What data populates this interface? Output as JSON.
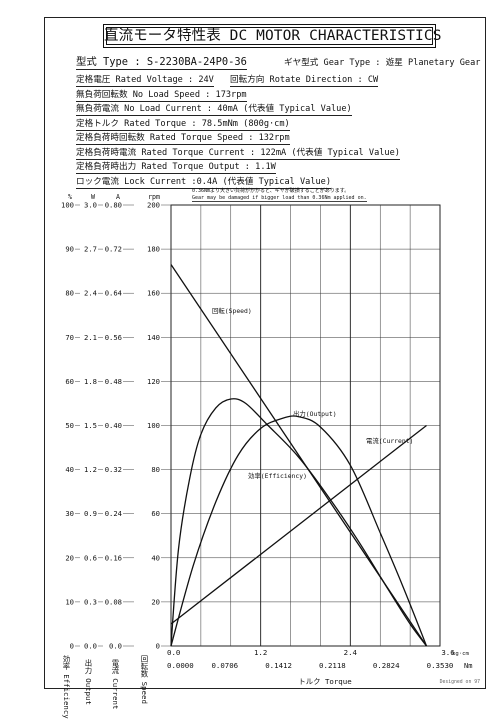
{
  "title": "直流モータ特性表 DC MOTOR CHARACTERISTICS",
  "specs": {
    "model": "型式 Type : S-2230BA-24P0-36",
    "gear": "ギヤ型式 Gear Type : 遊星 Planetary Gear",
    "rated_voltage": "定格電圧 Rated Voltage : 24V",
    "rotate_direction": "回転方向 Rotate Direction : CW",
    "no_load_speed": "無負荷回転数 No Load Speed : 173rpm",
    "no_load_current": "無負荷電流 No Load Current : 40mA (代表値 Typical Value)",
    "rated_torque": "定格トルク Rated Torque : 78.5mNm (800g·cm)",
    "rated_torque_speed": "定格負荷時回転数 Rated Torque Speed : 132rpm",
    "rated_torque_current": "定格負荷時電流 Rated Torque Current : 122mA (代表値 Typical Value)",
    "rated_torque_output": "定格負荷時出力 Rated Torque Output : 1.1W",
    "lock_current": "ロック電流 Lock Current :0.4A (代表値 Typical Value)"
  },
  "warning": {
    "jp": "0.36Nmより大きい負荷がかかると、ギヤが破損することがあります。",
    "en": "Gear may be damaged if bigger load than 0.36Nm applied on."
  },
  "designed_by": "Designed on 97",
  "chart_data": {
    "type": "line",
    "x_axis": {
      "label": "トルク Torque",
      "range": [
        0,
        3.6
      ],
      "unit_kgcm": "kg·cm",
      "unit_nm": "Nm",
      "ticks_kgcm": [
        "0.0",
        "1.2",
        "2.4",
        "3.6"
      ],
      "ticks_nm": [
        "0.0000",
        "0.0706",
        "0.1412",
        "0.2118",
        "0.2824",
        "0.3530"
      ]
    },
    "y_axes": [
      {
        "name": "efficiency",
        "unit": "%",
        "label": "効率 Efficiency",
        "range": [
          0,
          100
        ],
        "ticks": [
          "0",
          "10",
          "20",
          "30",
          "40",
          "50",
          "60",
          "70",
          "80",
          "90",
          "100"
        ]
      },
      {
        "name": "output",
        "unit": "W",
        "label": "出力 Output",
        "range": [
          0,
          3.0
        ],
        "ticks": [
          "0.0",
          "0.3",
          "0.6",
          "0.9",
          "1.2",
          "1.5",
          "1.8",
          "2.1",
          "2.4",
          "2.7",
          "3.0"
        ]
      },
      {
        "name": "current",
        "unit": "A",
        "label": "電流 Current",
        "range": [
          0,
          0.8
        ],
        "ticks": [
          "0.0",
          "0.08",
          "0.16",
          "0.24",
          "0.32",
          "0.40",
          "0.48",
          "0.56",
          "0.64",
          "0.72",
          "0.80"
        ]
      },
      {
        "name": "speed",
        "unit": "rpm",
        "label": "回転数 Speed",
        "range": [
          0,
          200
        ],
        "ticks": [
          "0",
          "20",
          "40",
          "60",
          "80",
          "100",
          "120",
          "140",
          "160",
          "180",
          "200"
        ]
      }
    ],
    "series": [
      {
        "name": "回転(Speed)",
        "axis": "speed",
        "points": [
          [
            0,
            173
          ],
          [
            3.42,
            0
          ]
        ]
      },
      {
        "name": "電流(Current)",
        "axis": "current",
        "points": [
          [
            0,
            0.04
          ],
          [
            3.42,
            0.4
          ]
        ]
      },
      {
        "name": "出力(Output)",
        "axis": "output",
        "points": [
          [
            0,
            0
          ],
          [
            0.3,
            0.55
          ],
          [
            0.6,
            0.98
          ],
          [
            0.9,
            1.3
          ],
          [
            1.2,
            1.48
          ],
          [
            1.5,
            1.55
          ],
          [
            1.71,
            1.56
          ],
          [
            2.0,
            1.49
          ],
          [
            2.4,
            1.23
          ],
          [
            2.8,
            0.77
          ],
          [
            3.1,
            0.41
          ],
          [
            3.42,
            0
          ]
        ]
      },
      {
        "name": "効率(Efficiency)",
        "axis": "efficiency",
        "points": [
          [
            0,
            0
          ],
          [
            0.1,
            22
          ],
          [
            0.25,
            38
          ],
          [
            0.4,
            48
          ],
          [
            0.6,
            54
          ],
          [
            0.8,
            56
          ],
          [
            1.0,
            55
          ],
          [
            1.3,
            50
          ],
          [
            1.7,
            43
          ],
          [
            2.1,
            34
          ],
          [
            2.5,
            24
          ],
          [
            2.9,
            13
          ],
          [
            3.2,
            5
          ],
          [
            3.42,
            0
          ]
        ]
      }
    ],
    "grid": true
  }
}
